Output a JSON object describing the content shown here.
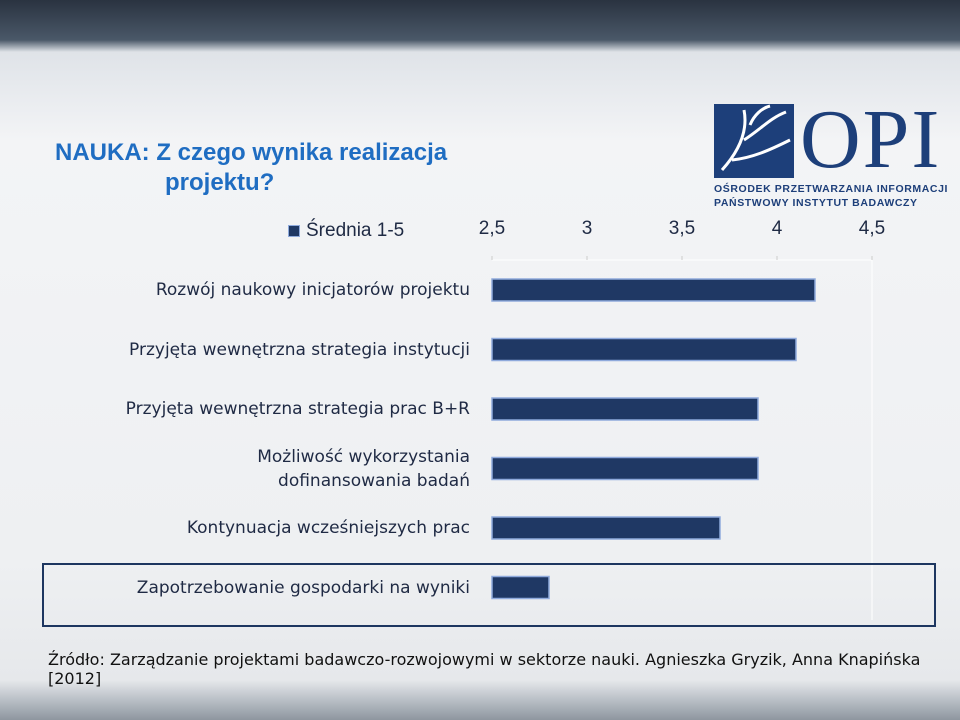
{
  "chart_data": {
    "type": "hbar",
    "title": "NAUKA: Z czego wynika realizacja projektu?",
    "categories": [
      "Rozwój naukowy inicjatorów projektu",
      "Przyjęta wewnętrzna strategia instytucji",
      "Przyjęta wewnętrzna strategia prac B+R",
      "Możliwość wykorzystania\ndofinansowania badań",
      "Kontynuacja wcześniejszych prac",
      "Zapotrzebowanie gospodarki na wyniki"
    ],
    "series": [
      {
        "name": "Średnia 1-5",
        "color": "#1f3864",
        "values": [
          4.2,
          4.1,
          3.9,
          3.9,
          3.7,
          2.8
        ]
      }
    ],
    "xlim": [
      2.5,
      4.5
    ],
    "xticks": [
      {
        "value": 2.5,
        "label": "2,5"
      },
      3,
      {
        "value": 3.5,
        "label": "3,5"
      },
      4,
      {
        "value": 4.5,
        "label": "4,5"
      }
    ],
    "source": "Źródło: Zarządzanie projektami badawczo-rozwojowymi w sektorze nauki. Agnieszka Gryzik, Anna Knapińska [2012]"
  },
  "logo": {
    "name": "OPI",
    "line1": "OŚRODEK PRZETWARZANIA INFORMACJI",
    "line2": "PAŃSTWOWY INSTYTUT BADAWCZY"
  }
}
